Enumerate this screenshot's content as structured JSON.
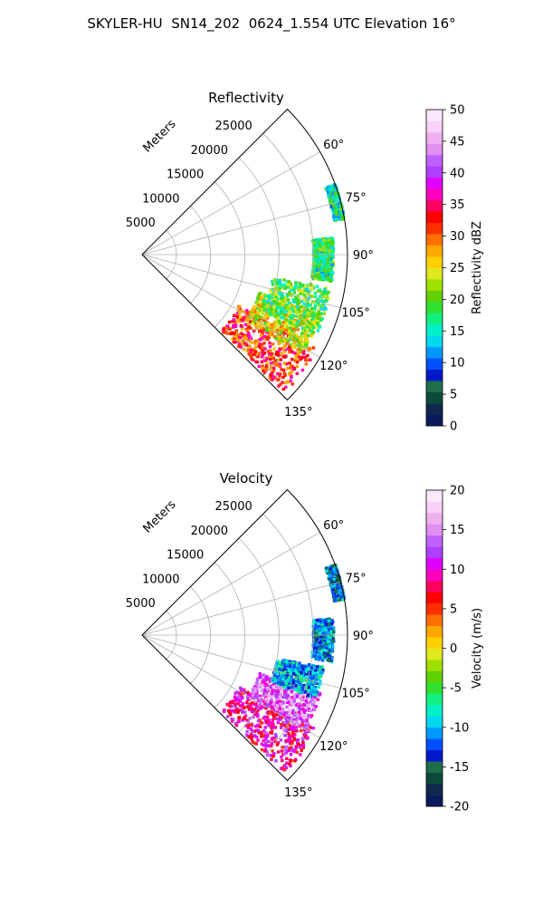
{
  "title": "SKYLER-HU  SN14_202  0624_1.554 UTC Elevation 16°",
  "chart_data": [
    {
      "type": "heatmap",
      "projection": "polar-sector",
      "title": "Reflectivity",
      "radial_label": "Meters",
      "radial_ticks": [
        5000,
        10000,
        15000,
        20000,
        25000
      ],
      "radial_range": [
        0,
        30000
      ],
      "azimuth_ticks": [
        "60°",
        "75°",
        "90°",
        "105°",
        "120°",
        "135°"
      ],
      "azimuth_range": [
        45,
        135
      ],
      "grid": true,
      "colorbar": {
        "label": "Reflectivity dBZ",
        "range": [
          0,
          50
        ],
        "ticks": [
          0,
          5,
          10,
          15,
          20,
          25,
          30,
          35,
          40,
          45,
          50
        ],
        "colors": [
          "#0a1a5c",
          "#10284e",
          "#0e4a3a",
          "#1e6e4c",
          "#0018c8",
          "#0050ff",
          "#0098ff",
          "#00d8f0",
          "#00f0c8",
          "#10f080",
          "#30e030",
          "#60d000",
          "#a0e000",
          "#e0e820",
          "#ffd000",
          "#ffa800",
          "#ff7000",
          "#ff3000",
          "#ff0000",
          "#ff0060",
          "#ff00c0",
          "#e000ff",
          "#b040ff",
          "#c060ff",
          "#e090f0",
          "#f0b0f0",
          "#f8d0f8",
          "#fce8fc"
        ]
      },
      "echoes": [
        {
          "az_range": [
            118,
            134
          ],
          "r_range": [
            16000,
            29000
          ],
          "value": 32
        },
        {
          "az_range": [
            108,
            122
          ],
          "r_range": [
            18000,
            27500
          ],
          "value": 24
        },
        {
          "az_range": [
            100,
            115
          ],
          "r_range": [
            19000,
            28000
          ],
          "value": 19
        },
        {
          "az_range": [
            85,
            98
          ],
          "r_range": [
            25000,
            28000
          ],
          "value": 17
        },
        {
          "az_range": [
            70,
            80
          ],
          "r_range": [
            28500,
            30000
          ],
          "value": 16
        }
      ]
    },
    {
      "type": "heatmap",
      "projection": "polar-sector",
      "title": "Velocity",
      "radial_label": "Meters",
      "radial_ticks": [
        5000,
        10000,
        15000,
        20000,
        25000
      ],
      "radial_range": [
        0,
        30000
      ],
      "azimuth_ticks": [
        "60°",
        "75°",
        "90°",
        "105°",
        "120°",
        "135°"
      ],
      "azimuth_range": [
        45,
        135
      ],
      "grid": true,
      "colorbar": {
        "label": "Velocity (m/s)",
        "range": [
          -20,
          20
        ],
        "ticks": [
          -20,
          -15,
          -10,
          -5,
          0,
          5,
          10,
          15,
          20
        ],
        "colors": [
          "#0a1a5c",
          "#10284e",
          "#0e4a3a",
          "#1e6e4c",
          "#0018c8",
          "#0050ff",
          "#0098ff",
          "#00d8f0",
          "#00f0c8",
          "#10f080",
          "#30e030",
          "#60d000",
          "#a0e000",
          "#e0e820",
          "#ffd000",
          "#ffa800",
          "#ff7000",
          "#ff3000",
          "#ff0000",
          "#ff0060",
          "#ff00c0",
          "#e000ff",
          "#b040ff",
          "#c060ff",
          "#e090f0",
          "#f0b0f0",
          "#f8d0f8",
          "#fce8fc"
        ]
      },
      "echoes": [
        {
          "az_range": [
            118,
            134
          ],
          "r_range": [
            16000,
            29000
          ],
          "value": 9
        },
        {
          "az_range": [
            108,
            120
          ],
          "r_range": [
            18000,
            27500
          ],
          "value": 13
        },
        {
          "az_range": [
            100,
            110
          ],
          "r_range": [
            20000,
            27000
          ],
          "value": -10
        },
        {
          "az_range": [
            85,
            98
          ],
          "r_range": [
            25000,
            28000
          ],
          "value": -11
        },
        {
          "az_range": [
            70,
            80
          ],
          "r_range": [
            28500,
            30000
          ],
          "value": -12
        }
      ]
    }
  ]
}
